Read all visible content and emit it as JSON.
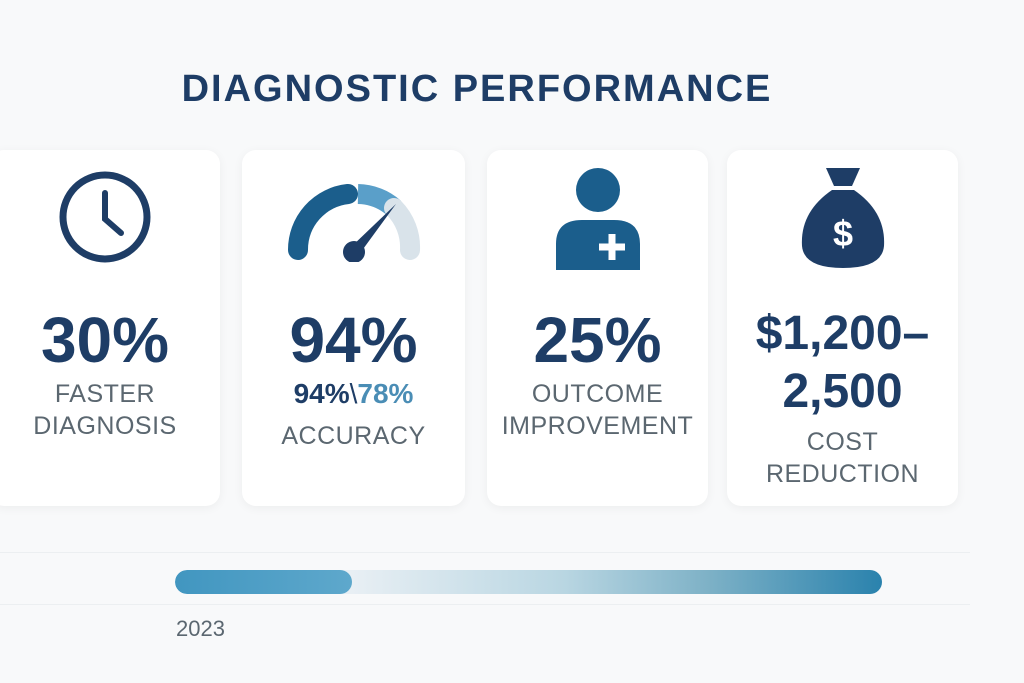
{
  "title": "DIAGNOSTIC PERFORMANCE",
  "cards": [
    {
      "icon": "clock-icon",
      "value": "30%",
      "label_line1": "FASTER",
      "label_line2": "DIAGNOSIS"
    },
    {
      "icon": "gauge-icon",
      "value": "94%",
      "compare_a": "94%",
      "compare_sep": "\\",
      "compare_b": "78%",
      "label_line1": "ACCURACY"
    },
    {
      "icon": "patient-plus-icon",
      "value": "25%",
      "label_line1": "OUTCOME",
      "label_line2": "IMPROVEMENT"
    },
    {
      "icon": "money-bag-icon",
      "value_line1": "$1,200–",
      "value_line2": "2,500",
      "label_line1": "COST",
      "label_line2": "REDUCTION",
      "icon_text": "$"
    }
  ],
  "timeline": {
    "year": "2023",
    "progress_percent": 25
  },
  "colors": {
    "primary": "#1e3d66",
    "accent": "#4a8db5",
    "bar_end": "#2a82ad"
  }
}
